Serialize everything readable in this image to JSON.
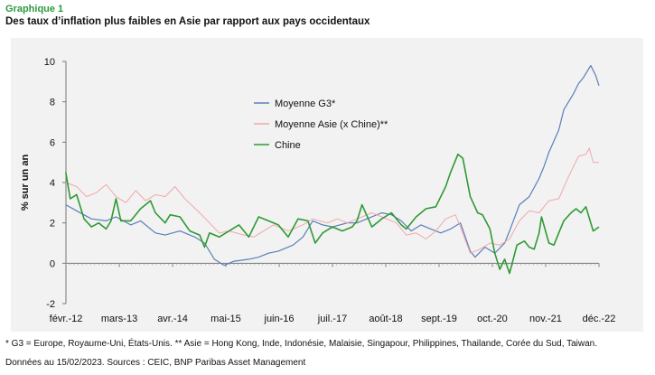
{
  "header": {
    "figure_label": "Graphique 1",
    "title": "Des taux d’inflation plus faibles en Asie par rapport aux pays occidentaux"
  },
  "footer": {
    "note1": "* G3 = Europe, Royaume-Uni, États-Unis. ** Asie = Hong Kong, Inde, Indonésie, Malaisie, Singapour, Philippines, Thailande, Corée du Sud, Taiwan.",
    "note2": "Données au 15/02/2023. Sources : CEIC, BNP Paribas Asset Management"
  },
  "colors": {
    "background": "#f2f2f2",
    "g3": "#5b7fb8",
    "asie": "#f3a7aa",
    "chine": "#2e9a35",
    "title_accent": "#2a9a3c"
  },
  "chart_data": {
    "type": "line",
    "title": "",
    "xlabel": "",
    "ylabel": "% sur un an",
    "ylim": [
      -2,
      10
    ],
    "yticks": [
      -2,
      0,
      2,
      4,
      6,
      8,
      10
    ],
    "xlim": [
      2012.083,
      2022.917
    ],
    "xticks": [
      {
        "label": "févr.-12",
        "t": 2012.083
      },
      {
        "label": "mars-13",
        "t": 2013.167
      },
      {
        "label": "avr.-14",
        "t": 2014.25
      },
      {
        "label": "mai-15",
        "t": 2015.333
      },
      {
        "label": "juin-16",
        "t": 2016.417
      },
      {
        "label": "juil.-17",
        "t": 2017.5
      },
      {
        "label": "août-18",
        "t": 2018.583
      },
      {
        "label": "sept.-19",
        "t": 2019.667
      },
      {
        "label": "oct.-20",
        "t": 2020.75
      },
      {
        "label": "nov.-21",
        "t": 2021.833
      },
      {
        "label": "déc.-22",
        "t": 2022.917
      }
    ],
    "grid": false,
    "legend_position": "top-center",
    "series": [
      {
        "name": "Moyenne G3*",
        "color": "#5b7fb8",
        "points": [
          [
            2012.08,
            2.9
          ],
          [
            2012.3,
            2.6
          ],
          [
            2012.6,
            2.2
          ],
          [
            2012.9,
            2.1
          ],
          [
            2013.1,
            2.3
          ],
          [
            2013.4,
            1.9
          ],
          [
            2013.6,
            2.1
          ],
          [
            2013.9,
            1.5
          ],
          [
            2014.1,
            1.4
          ],
          [
            2014.4,
            1.6
          ],
          [
            2014.7,
            1.3
          ],
          [
            2014.9,
            1.0
          ],
          [
            2015.1,
            0.2
          ],
          [
            2015.3,
            -0.1
          ],
          [
            2015.5,
            0.1
          ],
          [
            2015.8,
            0.2
          ],
          [
            2016.0,
            0.3
          ],
          [
            2016.2,
            0.5
          ],
          [
            2016.4,
            0.6
          ],
          [
            2016.7,
            0.9
          ],
          [
            2016.9,
            1.3
          ],
          [
            2017.1,
            2.1
          ],
          [
            2017.3,
            1.9
          ],
          [
            2017.5,
            1.8
          ],
          [
            2017.8,
            2.0
          ],
          [
            2018.0,
            2.0
          ],
          [
            2018.2,
            2.2
          ],
          [
            2018.5,
            2.5
          ],
          [
            2018.7,
            2.4
          ],
          [
            2018.9,
            2.1
          ],
          [
            2019.1,
            1.6
          ],
          [
            2019.3,
            1.9
          ],
          [
            2019.5,
            1.7
          ],
          [
            2019.7,
            1.5
          ],
          [
            2019.9,
            1.7
          ],
          [
            2020.1,
            2.0
          ],
          [
            2020.3,
            0.6
          ],
          [
            2020.4,
            0.3
          ],
          [
            2020.6,
            0.8
          ],
          [
            2020.8,
            0.5
          ],
          [
            2021.0,
            1.0
          ],
          [
            2021.1,
            1.6
          ],
          [
            2021.3,
            2.9
          ],
          [
            2021.5,
            3.3
          ],
          [
            2021.7,
            4.2
          ],
          [
            2021.8,
            4.8
          ],
          [
            2021.9,
            5.5
          ],
          [
            2022.1,
            6.6
          ],
          [
            2022.2,
            7.6
          ],
          [
            2022.4,
            8.4
          ],
          [
            2022.5,
            8.9
          ],
          [
            2022.6,
            9.2
          ],
          [
            2022.75,
            9.8
          ],
          [
            2022.85,
            9.3
          ],
          [
            2022.917,
            8.8
          ]
        ]
      },
      {
        "name": "Moyenne Asie (x Chine)**",
        "color": "#f3a7aa",
        "points": [
          [
            2012.08,
            4.0
          ],
          [
            2012.3,
            3.8
          ],
          [
            2012.5,
            3.3
          ],
          [
            2012.7,
            3.5
          ],
          [
            2012.9,
            3.9
          ],
          [
            2013.1,
            3.3
          ],
          [
            2013.3,
            3.0
          ],
          [
            2013.5,
            3.6
          ],
          [
            2013.7,
            3.1
          ],
          [
            2013.9,
            3.4
          ],
          [
            2014.1,
            3.3
          ],
          [
            2014.3,
            3.8
          ],
          [
            2014.5,
            3.2
          ],
          [
            2014.8,
            2.5
          ],
          [
            2015.0,
            2.0
          ],
          [
            2015.2,
            1.5
          ],
          [
            2015.4,
            1.6
          ],
          [
            2015.7,
            1.4
          ],
          [
            2015.9,
            1.3
          ],
          [
            2016.1,
            1.6
          ],
          [
            2016.3,
            1.9
          ],
          [
            2016.6,
            1.6
          ],
          [
            2016.9,
            1.9
          ],
          [
            2017.1,
            2.2
          ],
          [
            2017.4,
            2.0
          ],
          [
            2017.6,
            2.2
          ],
          [
            2017.8,
            2.0
          ],
          [
            2018.1,
            2.3
          ],
          [
            2018.3,
            2.5
          ],
          [
            2018.5,
            2.3
          ],
          [
            2018.8,
            2.0
          ],
          [
            2019.0,
            1.4
          ],
          [
            2019.2,
            1.5
          ],
          [
            2019.4,
            1.2
          ],
          [
            2019.6,
            1.6
          ],
          [
            2019.8,
            2.2
          ],
          [
            2020.0,
            2.4
          ],
          [
            2020.1,
            1.8
          ],
          [
            2020.3,
            0.5
          ],
          [
            2020.5,
            0.7
          ],
          [
            2020.7,
            1.0
          ],
          [
            2020.9,
            0.9
          ],
          [
            2021.1,
            1.2
          ],
          [
            2021.3,
            2.1
          ],
          [
            2021.5,
            2.6
          ],
          [
            2021.7,
            2.5
          ],
          [
            2021.9,
            3.1
          ],
          [
            2022.1,
            3.2
          ],
          [
            2022.3,
            4.3
          ],
          [
            2022.5,
            5.3
          ],
          [
            2022.65,
            5.4
          ],
          [
            2022.72,
            5.7
          ],
          [
            2022.8,
            5.0
          ],
          [
            2022.917,
            5.0
          ]
        ]
      },
      {
        "name": "Chine",
        "color": "#2e9a35",
        "points": [
          [
            2012.08,
            4.5
          ],
          [
            2012.17,
            3.2
          ],
          [
            2012.3,
            3.4
          ],
          [
            2012.45,
            2.2
          ],
          [
            2012.6,
            1.8
          ],
          [
            2012.75,
            2.0
          ],
          [
            2012.9,
            1.7
          ],
          [
            2013.0,
            2.1
          ],
          [
            2013.1,
            3.2
          ],
          [
            2013.2,
            2.1
          ],
          [
            2013.4,
            2.1
          ],
          [
            2013.6,
            2.7
          ],
          [
            2013.8,
            3.1
          ],
          [
            2013.9,
            2.5
          ],
          [
            2014.1,
            2.0
          ],
          [
            2014.2,
            2.4
          ],
          [
            2014.4,
            2.3
          ],
          [
            2014.6,
            1.6
          ],
          [
            2014.8,
            1.4
          ],
          [
            2014.9,
            0.8
          ],
          [
            2015.0,
            1.5
          ],
          [
            2015.2,
            1.3
          ],
          [
            2015.4,
            1.6
          ],
          [
            2015.6,
            1.9
          ],
          [
            2015.8,
            1.3
          ],
          [
            2016.0,
            2.3
          ],
          [
            2016.2,
            2.1
          ],
          [
            2016.4,
            1.9
          ],
          [
            2016.6,
            1.3
          ],
          [
            2016.8,
            2.2
          ],
          [
            2017.0,
            2.1
          ],
          [
            2017.15,
            1.0
          ],
          [
            2017.3,
            1.5
          ],
          [
            2017.5,
            1.8
          ],
          [
            2017.7,
            1.6
          ],
          [
            2017.9,
            1.8
          ],
          [
            2018.0,
            2.1
          ],
          [
            2018.1,
            2.9
          ],
          [
            2018.3,
            1.8
          ],
          [
            2018.5,
            2.2
          ],
          [
            2018.7,
            2.5
          ],
          [
            2018.9,
            1.9
          ],
          [
            2019.0,
            1.7
          ],
          [
            2019.2,
            2.3
          ],
          [
            2019.4,
            2.7
          ],
          [
            2019.6,
            2.8
          ],
          [
            2019.8,
            3.8
          ],
          [
            2019.9,
            4.5
          ],
          [
            2020.05,
            5.4
          ],
          [
            2020.15,
            5.2
          ],
          [
            2020.3,
            3.3
          ],
          [
            2020.45,
            2.5
          ],
          [
            2020.55,
            2.4
          ],
          [
            2020.7,
            1.7
          ],
          [
            2020.8,
            0.5
          ],
          [
            2020.9,
            -0.3
          ],
          [
            2021.0,
            0.2
          ],
          [
            2021.1,
            -0.5
          ],
          [
            2021.25,
            0.9
          ],
          [
            2021.4,
            1.1
          ],
          [
            2021.5,
            0.8
          ],
          [
            2021.6,
            0.7
          ],
          [
            2021.7,
            1.5
          ],
          [
            2021.75,
            2.3
          ],
          [
            2021.9,
            1.0
          ],
          [
            2022.0,
            0.9
          ],
          [
            2022.1,
            1.5
          ],
          [
            2022.2,
            2.1
          ],
          [
            2022.35,
            2.5
          ],
          [
            2022.45,
            2.7
          ],
          [
            2022.55,
            2.5
          ],
          [
            2022.65,
            2.8
          ],
          [
            2022.8,
            1.6
          ],
          [
            2022.917,
            1.8
          ]
        ]
      }
    ]
  }
}
